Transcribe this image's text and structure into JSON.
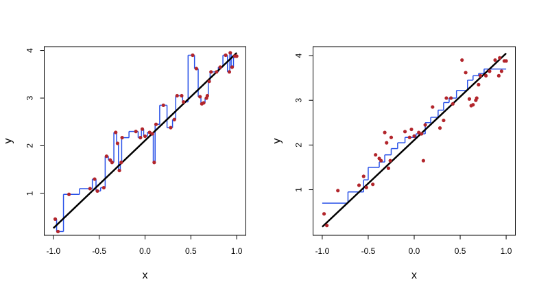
{
  "chart_data": [
    {
      "type": "scatter",
      "x_label": "x",
      "y_label": "y",
      "xlim": [
        -1.1,
        1.1
      ],
      "ylim": [
        0.12,
        4.08
      ],
      "xticks": [
        {
          "value": -1,
          "label": "-1.0"
        },
        -0.5,
        {
          "value": 0,
          "label": "0.0"
        },
        0.5,
        {
          "value": 1,
          "label": "1.0"
        }
      ],
      "yticks": [
        1,
        2,
        3,
        4
      ],
      "points": {
        "color": "#b2252b",
        "x": [
          -0.98,
          -0.95,
          -0.83,
          -0.6,
          -0.55,
          -0.52,
          -0.45,
          -0.42,
          -0.38,
          -0.36,
          -0.32,
          -0.3,
          -0.28,
          -0.26,
          -0.25,
          -0.1,
          -0.05,
          -0.03,
          0.0,
          0.05,
          0.08,
          0.1,
          0.12,
          0.2,
          0.28,
          0.32,
          0.35,
          0.4,
          0.42,
          0.52,
          0.56,
          0.6,
          0.62,
          0.64,
          0.67,
          0.68,
          0.7,
          0.72,
          0.78,
          0.82,
          0.88,
          0.92,
          0.93,
          0.95,
          0.98,
          1.0
        ],
        "y": [
          0.46,
          0.2,
          0.98,
          1.1,
          1.3,
          1.05,
          1.12,
          1.78,
          1.7,
          1.65,
          2.28,
          2.05,
          1.48,
          1.65,
          2.17,
          2.3,
          2.17,
          2.35,
          2.2,
          2.28,
          2.25,
          1.65,
          2.45,
          2.85,
          2.38,
          2.55,
          3.05,
          3.05,
          2.92,
          3.9,
          3.62,
          3.03,
          2.88,
          2.9,
          3.0,
          3.05,
          3.35,
          3.55,
          3.55,
          3.65,
          3.9,
          3.55,
          3.95,
          3.65,
          3.88,
          3.88
        ]
      },
      "fit": {
        "color": "#2a52e8",
        "kind": "nearest"
      },
      "truth": {
        "color": "#000000",
        "x": [
          -1,
          1
        ],
        "y": [
          0.27,
          3.95
        ]
      }
    },
    {
      "type": "scatter",
      "x_label": "x",
      "y_label": "y",
      "xlim": [
        -1.1,
        1.1
      ],
      "ylim": [
        -0.02,
        4.2
      ],
      "xticks": [
        {
          "value": -1,
          "label": "-1.0"
        },
        -0.5,
        {
          "value": 0,
          "label": "0.0"
        },
        0.5,
        {
          "value": 1,
          "label": "1.0"
        }
      ],
      "yticks": [
        1,
        2,
        3,
        4
      ],
      "points": {
        "color": "#b2252b",
        "x": [
          -0.98,
          -0.95,
          -0.83,
          -0.6,
          -0.55,
          -0.52,
          -0.45,
          -0.42,
          -0.38,
          -0.36,
          -0.32,
          -0.3,
          -0.28,
          -0.26,
          -0.25,
          -0.1,
          -0.05,
          -0.03,
          0.0,
          0.05,
          0.08,
          0.1,
          0.12,
          0.2,
          0.28,
          0.32,
          0.35,
          0.4,
          0.42,
          0.52,
          0.56,
          0.6,
          0.62,
          0.64,
          0.67,
          0.68,
          0.7,
          0.72,
          0.78,
          0.82,
          0.88,
          0.92,
          0.93,
          0.95,
          0.98,
          1.0
        ],
        "y": [
          0.46,
          0.2,
          0.98,
          1.1,
          1.3,
          1.05,
          1.12,
          1.78,
          1.7,
          1.65,
          2.28,
          2.05,
          1.48,
          1.65,
          2.17,
          2.3,
          2.17,
          2.35,
          2.2,
          2.28,
          2.25,
          1.65,
          2.45,
          2.85,
          2.38,
          2.55,
          3.05,
          3.05,
          2.92,
          3.9,
          3.62,
          3.03,
          2.88,
          2.9,
          3.0,
          3.05,
          3.35,
          3.55,
          3.55,
          3.65,
          3.9,
          3.55,
          3.95,
          3.65,
          3.88,
          3.88
        ]
      },
      "fit": {
        "color": "#2a52e8",
        "kind": "steps",
        "edges": [
          -1,
          -0.72,
          -0.55,
          -0.5,
          -0.38,
          -0.32,
          -0.25,
          -0.18,
          -0.1,
          0.02,
          0.12,
          0.18,
          0.26,
          0.32,
          0.38,
          0.46,
          0.58,
          0.64,
          0.7,
          0.76,
          1.0
        ],
        "values": [
          0.7,
          0.95,
          1.22,
          1.5,
          1.62,
          1.78,
          1.92,
          2.05,
          2.17,
          2.25,
          2.5,
          2.62,
          2.78,
          2.95,
          3.05,
          3.22,
          3.45,
          3.55,
          3.6,
          3.7
        ]
      },
      "truth": {
        "color": "#000000",
        "x": [
          -1,
          1
        ],
        "y": [
          0.17,
          4.05
        ]
      }
    }
  ]
}
